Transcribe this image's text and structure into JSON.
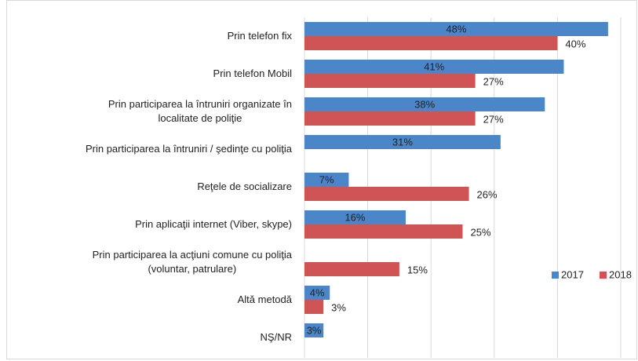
{
  "chart_data": {
    "type": "bar",
    "orientation": "horizontal",
    "categories": [
      "Prin telefon fix",
      "Prin telefon Mobil",
      "Prin participarea la întruniri organizate în\nlocalitate de poliţie",
      "Prin participarea la întruniri / şedinţe cu poliţia",
      "Reţele de socializare ",
      "Prin aplicaţii internet  (Viber, skype)",
      "Prin participarea la acţiuni comune cu poliţia\n(voluntar, patrulare)",
      "Altă metodă",
      "NŞ/NR"
    ],
    "series": [
      {
        "name": "2017",
        "color": "#4a86c8",
        "values": [
          48,
          41,
          38,
          31,
          7,
          16,
          null,
          4,
          3
        ],
        "value_labels": [
          "48%",
          "41%",
          "38%",
          "31%",
          "7%",
          "16%",
          null,
          "4%",
          "3%"
        ]
      },
      {
        "name": "2018",
        "color": "#d05454",
        "values": [
          40,
          27,
          27,
          null,
          26,
          25,
          15,
          3,
          null
        ],
        "value_labels": [
          "40%",
          "27%",
          "27%",
          null,
          "26%",
          "25%",
          "15%",
          "3%",
          null
        ]
      }
    ],
    "xlim": [
      0,
      50
    ],
    "xticks": [
      0,
      10,
      20,
      30,
      40,
      50
    ],
    "grid": true,
    "legend": "right"
  }
}
